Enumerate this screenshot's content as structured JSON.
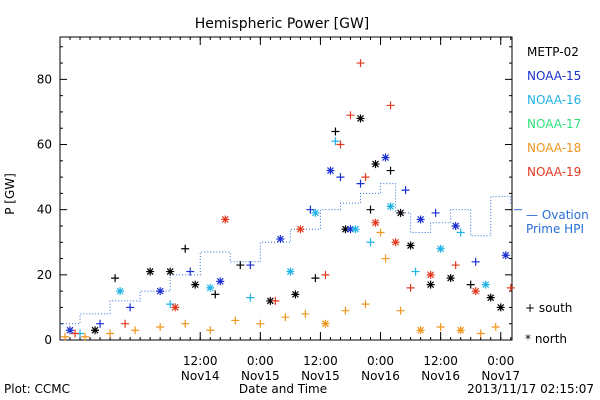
{
  "chart_data": {
    "type": "scatter",
    "title": "Hemispheric Power [GW]",
    "xlabel": "Date and Time",
    "ylabel": "P [GW]",
    "ylim": [
      0,
      93
    ],
    "yticks": [
      0,
      20,
      40,
      60,
      80
    ],
    "xrange": [
      "2013-11-13T08:00",
      "2013-11-17T02:15"
    ],
    "xticks": [
      {
        "t": "2013-11-14T12:00",
        "time": "12:00",
        "date": "Nov14"
      },
      {
        "t": "2013-11-15T00:00",
        "time": "0:00",
        "date": "Nov15"
      },
      {
        "t": "2013-11-15T12:00",
        "time": "12:00",
        "date": "Nov15"
      },
      {
        "t": "2013-11-16T00:00",
        "time": "0:00",
        "date": "Nov16"
      },
      {
        "t": "2013-11-16T12:00",
        "time": "12:00",
        "date": "Nov16"
      },
      {
        "t": "2013-11-17T00:00",
        "time": "0:00",
        "date": "Nov17"
      }
    ],
    "grid": false,
    "legend_position": "right",
    "symbol_legend": [
      {
        "symbol": "+",
        "label": "south"
      },
      {
        "symbol": "*",
        "label": "north"
      }
    ],
    "series": [
      {
        "name": "METP-02",
        "color": "#000000",
        "points": [
          [
            "2013-11-13T15:00",
            3,
            "*"
          ],
          [
            "2013-11-13T19:00",
            19,
            "+"
          ],
          [
            "2013-11-14T02:00",
            21,
            "*"
          ],
          [
            "2013-11-14T06:00",
            21,
            "*"
          ],
          [
            "2013-11-14T09:00",
            28,
            "+"
          ],
          [
            "2013-11-14T11:00",
            17,
            "*"
          ],
          [
            "2013-11-14T15:00",
            14,
            "+"
          ],
          [
            "2013-11-14T20:00",
            23,
            "+"
          ],
          [
            "2013-11-15T02:00",
            12,
            "*"
          ],
          [
            "2013-11-15T07:00",
            14,
            "*"
          ],
          [
            "2013-11-15T11:00",
            19,
            "+"
          ],
          [
            "2013-11-15T15:00",
            64,
            "+"
          ],
          [
            "2013-11-15T17:00",
            34,
            "*"
          ],
          [
            "2013-11-15T20:00",
            68,
            "*"
          ],
          [
            "2013-11-15T22:00",
            40,
            "+"
          ],
          [
            "2013-11-15T23:00",
            54,
            "*"
          ],
          [
            "2013-11-16T02:00",
            52,
            "+"
          ],
          [
            "2013-11-16T04:00",
            39,
            "*"
          ],
          [
            "2013-11-16T06:00",
            29,
            "*"
          ],
          [
            "2013-11-16T10:00",
            17,
            "*"
          ],
          [
            "2013-11-16T14:00",
            19,
            "*"
          ],
          [
            "2013-11-16T18:00",
            17,
            "+"
          ],
          [
            "2013-11-16T22:00",
            13,
            "*"
          ],
          [
            "2013-11-17T00:00",
            10,
            "*"
          ]
        ]
      },
      {
        "name": "NOAA-15",
        "color": "#1a2fd1",
        "points": [
          [
            "2013-11-13T10:00",
            3,
            "*"
          ],
          [
            "2013-11-13T16:00",
            5,
            "+"
          ],
          [
            "2013-11-13T22:00",
            10,
            "+"
          ],
          [
            "2013-11-14T04:00",
            15,
            "*"
          ],
          [
            "2013-11-14T10:00",
            21,
            "+"
          ],
          [
            "2013-11-14T16:00",
            18,
            "*"
          ],
          [
            "2013-11-14T22:00",
            23,
            "+"
          ],
          [
            "2013-11-15T04:00",
            31,
            "*"
          ],
          [
            "2013-11-15T10:00",
            40,
            "+"
          ],
          [
            "2013-11-15T14:00",
            52,
            "*"
          ],
          [
            "2013-11-15T16:00",
            50,
            "+"
          ],
          [
            "2013-11-15T18:00",
            34,
            "*"
          ],
          [
            "2013-11-15T20:00",
            48,
            "+"
          ],
          [
            "2013-11-16T01:00",
            56,
            "*"
          ],
          [
            "2013-11-16T05:00",
            46,
            "+"
          ],
          [
            "2013-11-16T08:00",
            37,
            "*"
          ],
          [
            "2013-11-16T11:00",
            39,
            "+"
          ],
          [
            "2013-11-16T15:00",
            35,
            "*"
          ],
          [
            "2013-11-16T19:00",
            24,
            "+"
          ],
          [
            "2013-11-17T01:00",
            26,
            "*"
          ]
        ]
      },
      {
        "name": "NOAA-16",
        "color": "#1fb3e6",
        "points": [
          [
            "2013-11-13T12:00",
            2,
            "+"
          ],
          [
            "2013-11-13T20:00",
            15,
            "*"
          ],
          [
            "2013-11-14T06:00",
            11,
            "+"
          ],
          [
            "2013-11-14T14:00",
            16,
            "*"
          ],
          [
            "2013-11-14T22:00",
            13,
            "+"
          ],
          [
            "2013-11-15T06:00",
            21,
            "*"
          ],
          [
            "2013-11-15T11:00",
            39,
            "*"
          ],
          [
            "2013-11-15T15:00",
            61,
            "+"
          ],
          [
            "2013-11-15T19:00",
            34,
            "*"
          ],
          [
            "2013-11-15T22:00",
            30,
            "+"
          ],
          [
            "2013-11-16T02:00",
            41,
            "*"
          ],
          [
            "2013-11-16T07:00",
            21,
            "+"
          ],
          [
            "2013-11-16T12:00",
            28,
            "*"
          ],
          [
            "2013-11-16T16:00",
            33,
            "+"
          ],
          [
            "2013-11-16T21:00",
            17,
            "*"
          ]
        ]
      },
      {
        "name": "NOAA-17",
        "color": "#2ee27c",
        "points": []
      },
      {
        "name": "NOAA-18",
        "color": "#f0951e",
        "points": [
          [
            "2013-11-13T09:00",
            1,
            "+"
          ],
          [
            "2013-11-13T13:00",
            1,
            "+"
          ],
          [
            "2013-11-13T18:00",
            2,
            "+"
          ],
          [
            "2013-11-13T23:00",
            3,
            "+"
          ],
          [
            "2013-11-14T04:00",
            4,
            "+"
          ],
          [
            "2013-11-14T09:00",
            5,
            "+"
          ],
          [
            "2013-11-14T14:00",
            3,
            "+"
          ],
          [
            "2013-11-14T19:00",
            6,
            "+"
          ],
          [
            "2013-11-15T00:00",
            5,
            "+"
          ],
          [
            "2013-11-15T05:00",
            7,
            "+"
          ],
          [
            "2013-11-15T09:00",
            8,
            "+"
          ],
          [
            "2013-11-15T13:00",
            5,
            "*"
          ],
          [
            "2013-11-15T17:00",
            9,
            "+"
          ],
          [
            "2013-11-15T21:00",
            11,
            "+"
          ],
          [
            "2013-11-16T00:00",
            33,
            "+"
          ],
          [
            "2013-11-16T01:00",
            25,
            "+"
          ],
          [
            "2013-11-16T04:00",
            9,
            "+"
          ],
          [
            "2013-11-16T08:00",
            3,
            "*"
          ],
          [
            "2013-11-16T12:00",
            4,
            "+"
          ],
          [
            "2013-11-16T16:00",
            3,
            "*"
          ],
          [
            "2013-11-16T20:00",
            2,
            "+"
          ],
          [
            "2013-11-16T23:00",
            4,
            "+"
          ]
        ]
      },
      {
        "name": "NOAA-19",
        "color": "#e23a1f",
        "points": [
          [
            "2013-11-13T11:00",
            2,
            "+"
          ],
          [
            "2013-11-13T21:00",
            5,
            "+"
          ],
          [
            "2013-11-14T07:00",
            10,
            "*"
          ],
          [
            "2013-11-14T17:00",
            37,
            "*"
          ],
          [
            "2013-11-15T03:00",
            12,
            "+"
          ],
          [
            "2013-11-15T08:00",
            34,
            "*"
          ],
          [
            "2013-11-15T13:00",
            20,
            "+"
          ],
          [
            "2013-11-15T16:00",
            60,
            "+"
          ],
          [
            "2013-11-15T18:00",
            69,
            "+"
          ],
          [
            "2013-11-15T20:00",
            85,
            "+"
          ],
          [
            "2013-11-15T21:00",
            50,
            "+"
          ],
          [
            "2013-11-15T23:00",
            36,
            "*"
          ],
          [
            "2013-11-16T02:00",
            72,
            "+"
          ],
          [
            "2013-11-16T03:00",
            30,
            "*"
          ],
          [
            "2013-11-16T06:00",
            16,
            "+"
          ],
          [
            "2013-11-16T10:00",
            20,
            "*"
          ],
          [
            "2013-11-16T15:00",
            23,
            "+"
          ],
          [
            "2013-11-16T19:00",
            15,
            "*"
          ],
          [
            "2013-11-17T02:00",
            16,
            "+"
          ]
        ]
      }
    ],
    "model": {
      "name": "Ovation Prime HPI",
      "color": "#2a6fd6",
      "points": [
        [
          "2013-11-13T08:00",
          5
        ],
        [
          "2013-11-13T12:00",
          8
        ],
        [
          "2013-11-13T18:00",
          12
        ],
        [
          "2013-11-14T00:00",
          15
        ],
        [
          "2013-11-14T06:00",
          20
        ],
        [
          "2013-11-14T12:00",
          27
        ],
        [
          "2013-11-14T18:00",
          24
        ],
        [
          "2013-11-15T00:00",
          30
        ],
        [
          "2013-11-15T06:00",
          34
        ],
        [
          "2013-11-15T12:00",
          40
        ],
        [
          "2013-11-15T16:00",
          42
        ],
        [
          "2013-11-15T20:00",
          45
        ],
        [
          "2013-11-16T00:00",
          48
        ],
        [
          "2013-11-16T03:00",
          39
        ],
        [
          "2013-11-16T06:00",
          33
        ],
        [
          "2013-11-16T10:00",
          36
        ],
        [
          "2013-11-16T14:00",
          40
        ],
        [
          "2013-11-16T18:00",
          32
        ],
        [
          "2013-11-16T22:00",
          44
        ],
        [
          "2013-11-17T02:00",
          42
        ]
      ]
    }
  },
  "footer": {
    "plot_source": "Plot: CCMC",
    "timestamp": "2013/11/17 02:15:07"
  }
}
